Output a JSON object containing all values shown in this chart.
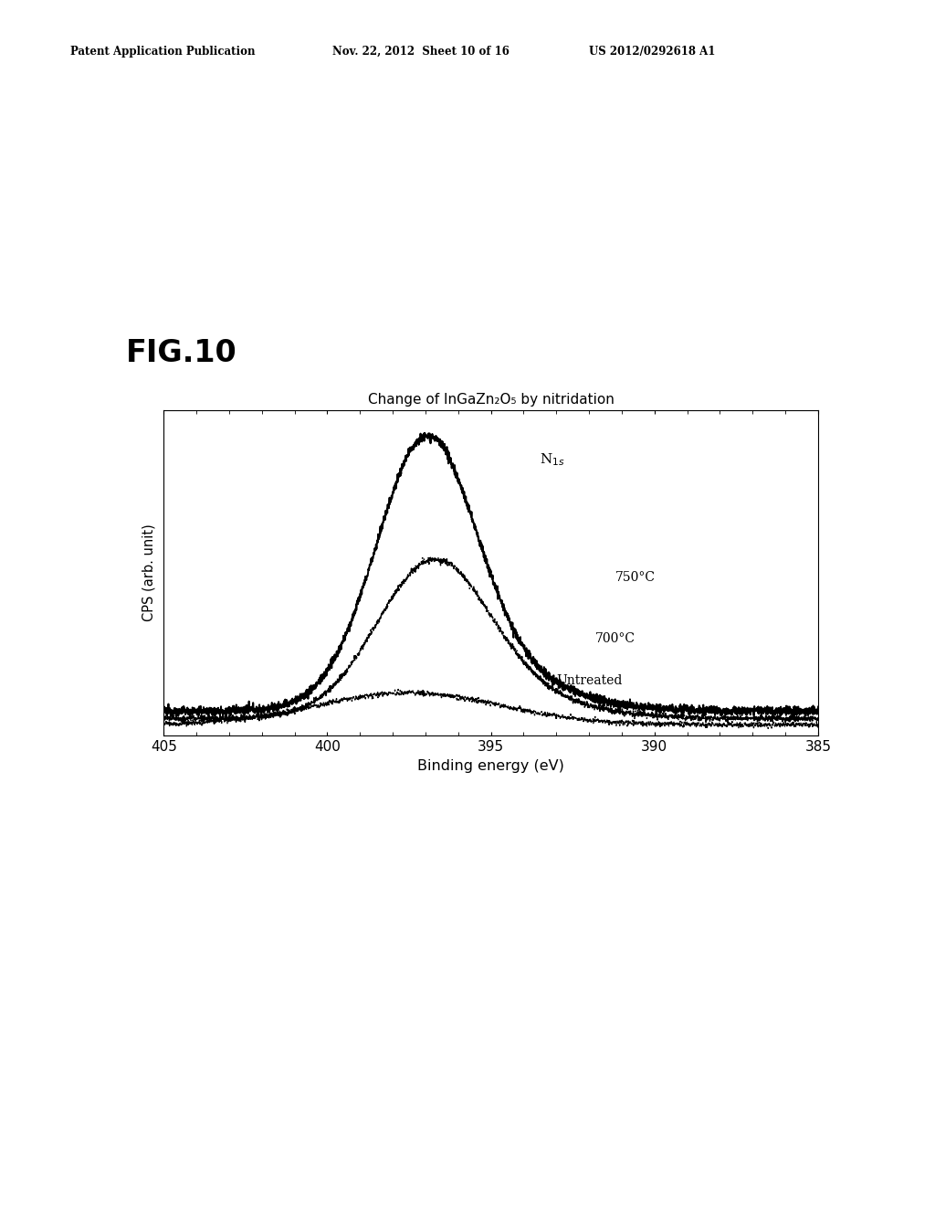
{
  "title": "Change of InGaZn₂O₅ by nitridation",
  "xlabel": "Binding energy (eV)",
  "ylabel": "CPS (arb. unit)",
  "fig_label": "FIG.10",
  "header_left": "Patent Application Publication",
  "header_mid": "Nov. 22, 2012  Sheet 10 of 16",
  "header_right": "US 2012/0292618 A1",
  "annotation_N1s": "N",
  "annotation_N1s_sub": "1s",
  "annotation_750": "750°C",
  "annotation_700": "700°C",
  "annotation_untreated": "Untreated",
  "bg_color": "#ffffff"
}
